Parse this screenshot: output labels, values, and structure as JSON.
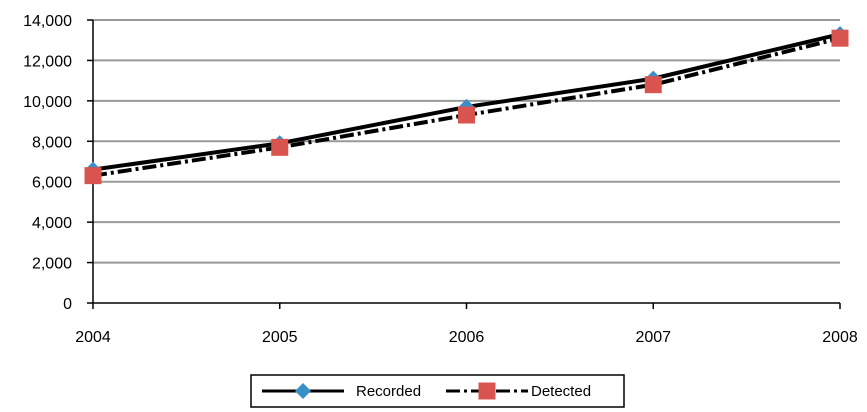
{
  "chart_data": {
    "type": "line",
    "x": [
      "2004",
      "2005",
      "2006",
      "2007",
      "2008"
    ],
    "ylim": [
      0,
      14000
    ],
    "yticks": [
      0,
      2000,
      4000,
      6000,
      8000,
      10000,
      12000,
      14000
    ],
    "ytick_labels": [
      "0",
      "2,000",
      "4,000",
      "6,000",
      "8,000",
      "10,000",
      "12,000",
      "14,000"
    ],
    "grid": true,
    "legend_position": "bottom",
    "series": [
      {
        "name": "Recorded",
        "values": [
          6600,
          7900,
          9700,
          11100,
          13300
        ],
        "line_color": "#000000",
        "line_style": "solid",
        "marker": "diamond",
        "marker_color": "#3a8fc7"
      },
      {
        "name": "Detected",
        "values": [
          6300,
          7700,
          9300,
          10800,
          13100
        ],
        "line_color": "#000000",
        "line_style": "dash-dot",
        "marker": "square",
        "marker_color": "#d9534f"
      }
    ],
    "colors": {
      "grid": "#999999",
      "axis": "#000000"
    }
  }
}
